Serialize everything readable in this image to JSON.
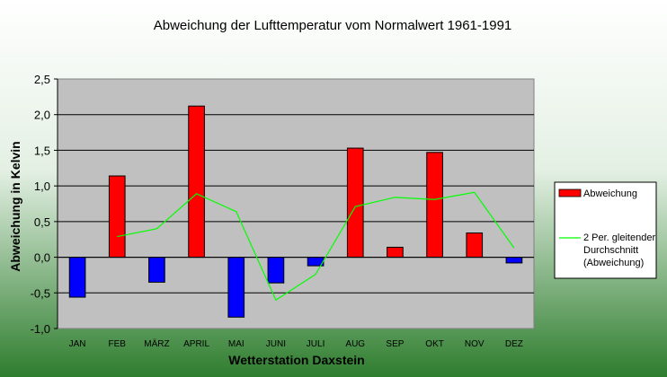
{
  "chart_data": {
    "type": "bar",
    "title": "Abweichung der Lufttemperatur vom Normalwert 1961-1991",
    "xlabel": "Wetterstation Daxstein",
    "ylabel": "Abweichung in Kelvin",
    "categories": [
      "JAN",
      "FEB",
      "MÄRZ",
      "APRIL",
      "MAI",
      "JUNI",
      "JULI",
      "AUG",
      "SEP",
      "OKT",
      "NOV",
      "DEZ"
    ],
    "ylim": [
      -1.0,
      2.5
    ],
    "ytick_step": 0.5,
    "ytick_labels": [
      "-1,0",
      "-0,5",
      "0,0",
      "0,5",
      "1,0",
      "1,5",
      "2,0",
      "2,5"
    ],
    "grid": true,
    "legend_position": "right",
    "series": [
      {
        "name": "Abweichung",
        "type": "bar",
        "values": [
          -0.56,
          1.14,
          -0.35,
          2.12,
          -0.84,
          -0.36,
          -0.12,
          1.53,
          0.14,
          1.47,
          0.34,
          -0.08
        ],
        "color_positive": "#FF0000",
        "color_negative": "#0000FF"
      },
      {
        "name": "2 Per. gleitender Durchschnitt (Abweichung)",
        "legend_lines": [
          "2 Per. gleitender",
          "Durchschnitt",
          "(Abweichung)"
        ],
        "type": "line",
        "values": [
          null,
          0.29,
          0.4,
          0.89,
          0.64,
          -0.6,
          -0.24,
          0.71,
          0.84,
          0.81,
          0.91,
          0.13
        ],
        "color": "#00FF00"
      }
    ],
    "colors": {
      "plot_background": "#C0C0C0",
      "grid": "#000000",
      "background_top": "#FFFFFF",
      "background_bottom": "#2E7D2E"
    }
  }
}
